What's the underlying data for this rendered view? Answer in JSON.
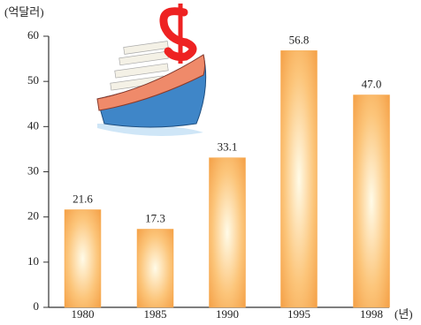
{
  "chart_data": {
    "type": "bar",
    "y_label": "(억달러)",
    "x_label": "(년)",
    "categories": [
      "1980",
      "1985",
      "1990",
      "1995",
      "1998"
    ],
    "values": [
      21.6,
      17.3,
      33.1,
      56.8,
      47.0
    ],
    "value_labels": [
      "21.6",
      "17.3",
      "33.1",
      "56.8",
      "47.0"
    ],
    "color": "#f7a84a",
    "ylim": [
      0,
      60
    ],
    "yticks": [
      0,
      10,
      20,
      30,
      40,
      50,
      60
    ],
    "grid": false
  }
}
